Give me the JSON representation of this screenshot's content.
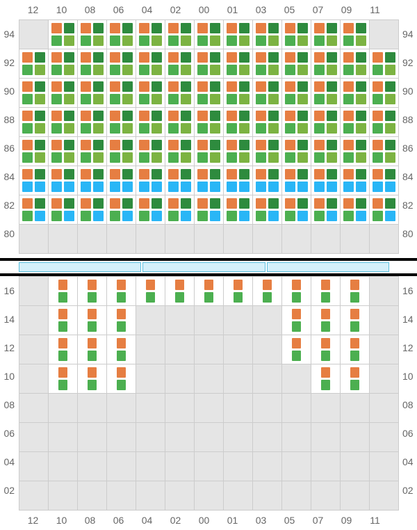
{
  "colors": {
    "orange": "#e67e42",
    "darkgreen": "#2e8b3e",
    "green": "#4caf50",
    "lightgreen": "#7cb342",
    "blue": "#29b6f6",
    "empty_bg": "#e5e5e5",
    "active_bg": "#ffffff",
    "grid_line": "#cccccc",
    "text": "#666666",
    "bar_blue_fill": "#d4f0fa",
    "bar_blue_border": "#5bc0de"
  },
  "columns": [
    "12",
    "10",
    "08",
    "06",
    "04",
    "02",
    "00",
    "01",
    "03",
    "05",
    "07",
    "09",
    "11"
  ],
  "top_rows": [
    "94",
    "92",
    "90",
    "88",
    "86",
    "84",
    "82",
    "80"
  ],
  "bottom_rows": [
    "16",
    "14",
    "12",
    "10",
    "08",
    "06",
    "04",
    "02"
  ],
  "patterns": {
    "A": [
      "orange",
      "darkgreen",
      "green",
      "lightgreen"
    ],
    "B": [
      "orange",
      "darkgreen",
      "blue",
      "blue"
    ],
    "C": [
      "orange",
      "darkgreen",
      "green",
      "blue"
    ],
    "D": [
      "orange",
      "green"
    ],
    "E": []
  },
  "top_grid": [
    [
      "E",
      "A",
      "A",
      "A",
      "A",
      "A",
      "A",
      "A",
      "A",
      "A",
      "A",
      "A",
      "E"
    ],
    [
      "A",
      "A",
      "A",
      "A",
      "A",
      "A",
      "A",
      "A",
      "A",
      "A",
      "A",
      "A",
      "A"
    ],
    [
      "A",
      "A",
      "A",
      "A",
      "A",
      "A",
      "A",
      "A",
      "A",
      "A",
      "A",
      "A",
      "A"
    ],
    [
      "A",
      "A",
      "A",
      "A",
      "A",
      "A",
      "A",
      "A",
      "A",
      "A",
      "A",
      "A",
      "A"
    ],
    [
      "A",
      "A",
      "A",
      "A",
      "A",
      "A",
      "A",
      "A",
      "A",
      "A",
      "A",
      "A",
      "A"
    ],
    [
      "B",
      "B",
      "B",
      "B",
      "B",
      "B",
      "B",
      "B",
      "B",
      "B",
      "B",
      "B",
      "B"
    ],
    [
      "C",
      "C",
      "C",
      "C",
      "C",
      "C",
      "C",
      "C",
      "C",
      "C",
      "C",
      "C",
      "C"
    ],
    [
      "E",
      "E",
      "E",
      "E",
      "E",
      "E",
      "E",
      "E",
      "E",
      "E",
      "E",
      "E",
      "E"
    ]
  ],
  "bottom_grid": [
    [
      "E",
      "D",
      "D",
      "D",
      "D",
      "D",
      "D",
      "D",
      "D",
      "D",
      "D",
      "D",
      "E"
    ],
    [
      "E",
      "D",
      "D",
      "D",
      "E",
      "E",
      "E",
      "E",
      "E",
      "D",
      "D",
      "D",
      "E"
    ],
    [
      "E",
      "D",
      "D",
      "D",
      "E",
      "E",
      "E",
      "E",
      "E",
      "D",
      "D",
      "D",
      "E"
    ],
    [
      "E",
      "D",
      "D",
      "D",
      "E",
      "E",
      "E",
      "E",
      "E",
      "E",
      "D",
      "D",
      "E"
    ],
    [
      "E",
      "E",
      "E",
      "E",
      "E",
      "E",
      "E",
      "E",
      "E",
      "E",
      "E",
      "E",
      "E"
    ],
    [
      "E",
      "E",
      "E",
      "E",
      "E",
      "E",
      "E",
      "E",
      "E",
      "E",
      "E",
      "E",
      "E"
    ],
    [
      "E",
      "E",
      "E",
      "E",
      "E",
      "E",
      "E",
      "E",
      "E",
      "E",
      "E",
      "E",
      "E"
    ],
    [
      "E",
      "E",
      "E",
      "E",
      "E",
      "E",
      "E",
      "E",
      "E",
      "E",
      "E",
      "E",
      "E"
    ]
  ],
  "blue_segments": 3
}
